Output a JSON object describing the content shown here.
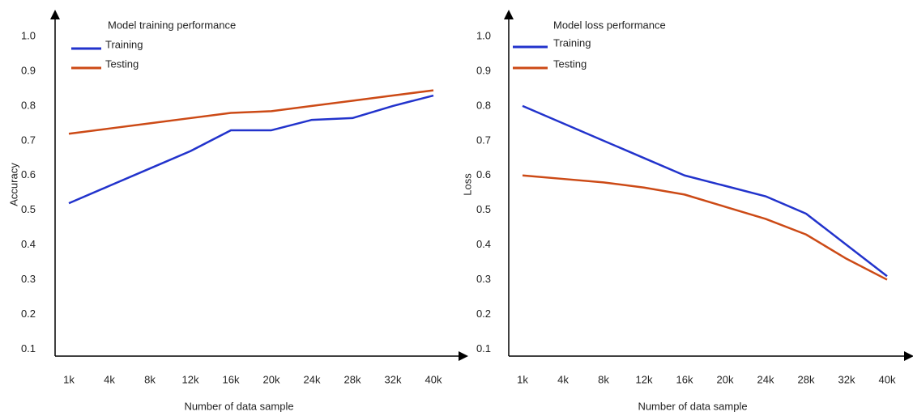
{
  "chart_data": [
    {
      "type": "line",
      "title": "Model training performance",
      "x_label": "Number of data sample",
      "y_label": "Accuracy",
      "categories": [
        "1k",
        "4k",
        "8k",
        "12k",
        "16k",
        "20k",
        "24k",
        "28k",
        "32k",
        "40k"
      ],
      "series": [
        {
          "name": "Training",
          "color": "#2233cc",
          "values": [
            0.52,
            0.57,
            0.62,
            0.67,
            0.73,
            0.73,
            0.76,
            0.765,
            0.8,
            0.83
          ]
        },
        {
          "name": "Testing",
          "color": "#cc4a16",
          "values": [
            0.72,
            0.735,
            0.75,
            0.765,
            0.78,
            0.785,
            0.8,
            0.815,
            0.83,
            0.845
          ]
        }
      ],
      "ylim": [
        0.08,
        1.07
      ],
      "yticks": [
        0.1,
        0.2,
        0.3,
        0.4,
        0.5,
        0.6,
        0.7,
        0.8,
        0.9,
        {
          "value": 1,
          "label": "1.0"
        }
      ],
      "grid": false
    },
    {
      "type": "line",
      "title": "Model loss performance",
      "x_label": "Number of data sample",
      "y_label": "Loss",
      "categories": [
        "1k",
        "4k",
        "8k",
        "12k",
        "16k",
        "20k",
        "24k",
        "28k",
        "32k",
        "40k"
      ],
      "series": [
        {
          "name": "Training",
          "color": "#2233cc",
          "values": [
            0.8,
            0.75,
            0.7,
            0.65,
            0.6,
            0.57,
            0.54,
            0.49,
            0.4,
            0.31
          ]
        },
        {
          "name": "Testing",
          "color": "#cc4a16",
          "values": [
            0.6,
            0.59,
            0.58,
            0.565,
            0.545,
            0.51,
            0.475,
            0.43,
            0.36,
            0.3
          ]
        }
      ],
      "ylim": [
        0.08,
        1.07
      ],
      "yticks": [
        0.1,
        0.2,
        0.3,
        0.4,
        0.5,
        0.6,
        0.7,
        0.8,
        0.9,
        {
          "value": 1,
          "label": "1.0"
        }
      ],
      "grid": false
    }
  ]
}
